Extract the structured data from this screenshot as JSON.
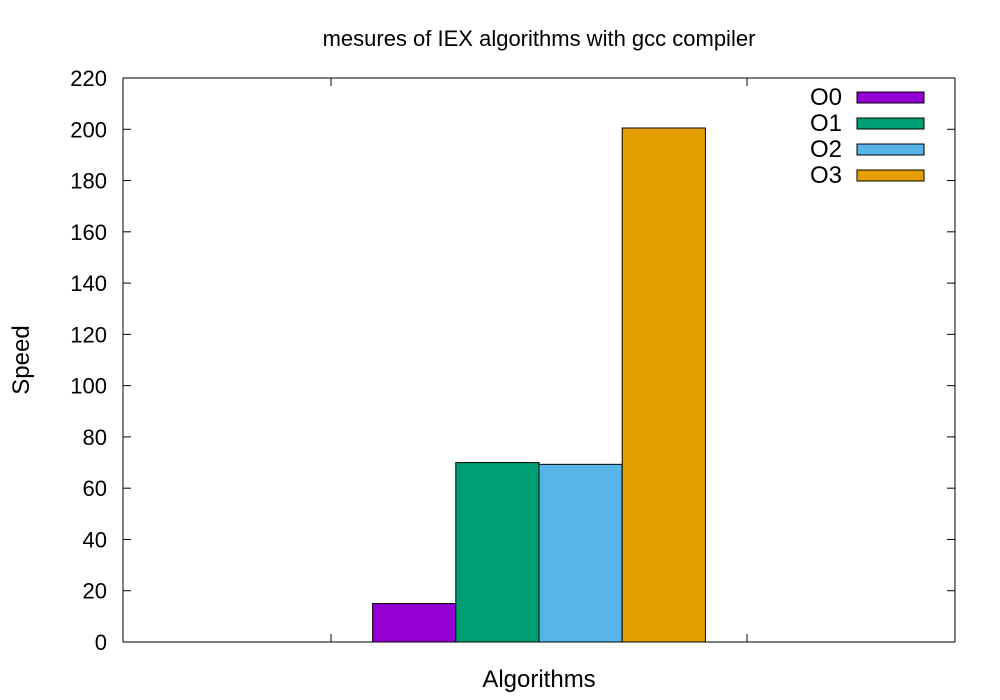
{
  "chart_data": {
    "type": "bar",
    "title": "mesures of IEX algorithms with gcc compiler",
    "xlabel": "Algorithms",
    "ylabel": "Speed",
    "ylim": [
      0,
      220
    ],
    "yticks": [
      "0",
      "20",
      "40",
      "60",
      "80",
      "100",
      "120",
      "140",
      "160",
      "180",
      "200",
      "220"
    ],
    "categories": [
      ""
    ],
    "series": [
      {
        "name": "O0",
        "values": [
          15
        ],
        "color": "#9400d3"
      },
      {
        "name": "O1",
        "values": [
          70
        ],
        "color": "#009e73"
      },
      {
        "name": "O2",
        "values": [
          69.3
        ],
        "color": "#56b4e9"
      },
      {
        "name": "O3",
        "values": [
          200.5
        ],
        "color": "#e69f00"
      }
    ],
    "grid": false,
    "legend": "top-right"
  }
}
